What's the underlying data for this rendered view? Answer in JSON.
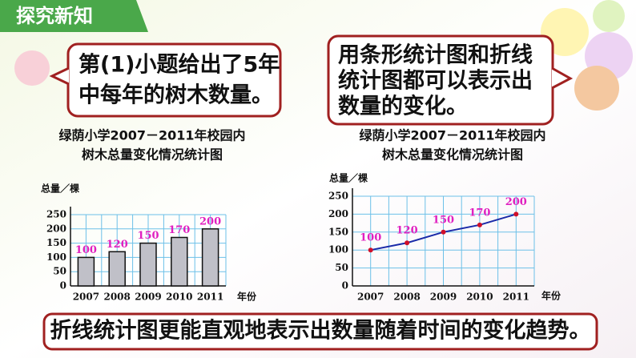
{
  "header": {
    "title": "探究新知"
  },
  "left_bubble": {
    "lines": [
      "第(1)小题给出了5年",
      "中每年的树木数量。"
    ]
  },
  "right_bubble": {
    "lines": [
      "用条形统计图和折线",
      "统计图都可以表示出",
      "数量的变化。"
    ]
  },
  "banner": {
    "text": "折线统计图更能直观地表示出数量随着时间的变化趋势。"
  },
  "chart_data": [
    {
      "type": "bar",
      "title": [
        "绿荫小学2007－2011年校园内",
        "树木总量变化情况统计图"
      ],
      "y_label": "总量／棵",
      "x_label": "年份",
      "categories": [
        "2007",
        "2008",
        "2009",
        "2010",
        "2011"
      ],
      "values": [
        100,
        120,
        150,
        170,
        200
      ],
      "color": "#c0c0c8",
      "label_color": "#e020c0",
      "ylim": [
        0,
        250
      ],
      "yticks": [
        0,
        50,
        100,
        150,
        200,
        250
      ],
      "grid": true
    },
    {
      "type": "line",
      "title": [
        "绿荫小学2007－2011年校园内",
        "树木总量变化情况统计图"
      ],
      "y_label": "总量／棵",
      "x_label": "年份",
      "categories": [
        "2007",
        "2008",
        "2009",
        "2010",
        "2011"
      ],
      "values": [
        100,
        120,
        150,
        170,
        200
      ],
      "color": "#1a2aa8",
      "marker_color": "#d0102a",
      "label_color": "#e020c0",
      "ylim": [
        0,
        250
      ],
      "yticks": [
        0,
        50,
        100,
        150,
        200,
        250
      ],
      "grid": true
    }
  ]
}
